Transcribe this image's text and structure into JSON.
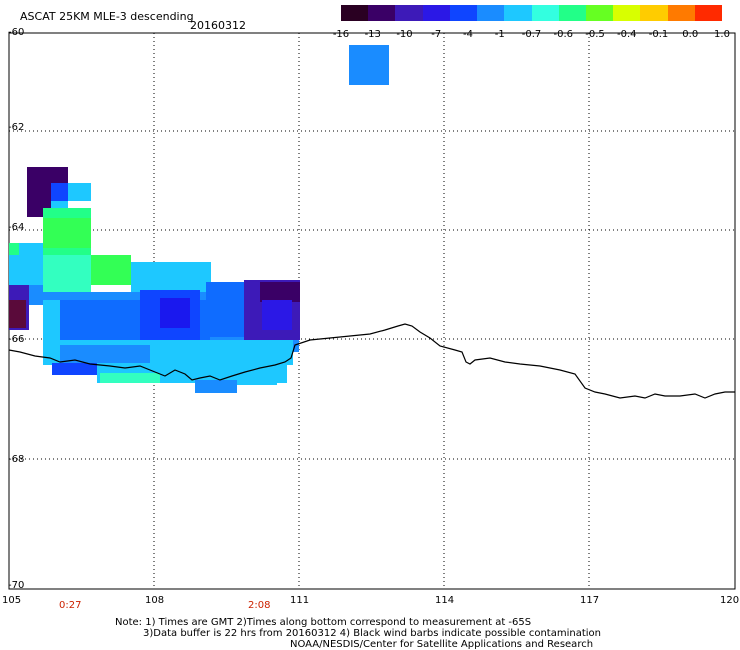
{
  "header": {
    "title": "ASCAT 25KM MLE-3 descending",
    "date": "20160312"
  },
  "colorbar": {
    "colors": [
      "#2a0022",
      "#3a0066",
      "#3d1ab8",
      "#2b18e6",
      "#0f45ff",
      "#1a8cff",
      "#1ec8ff",
      "#33ffe0",
      "#22ff88",
      "#66ff22",
      "#d8ff00",
      "#ffcc00",
      "#ff7a00",
      "#ff2a00"
    ],
    "labels": [
      "-16",
      "-13",
      "-10",
      "-7",
      "-4",
      "-1",
      "-0.7",
      "-0.6",
      "-0.5",
      "-0.4",
      "-0.1",
      "0.0",
      "1.0"
    ]
  },
  "axes": {
    "lat_labels": [
      "-60",
      "-62",
      "-64",
      "-66",
      "-68",
      "-70"
    ],
    "lon_labels": [
      "105",
      "108",
      "111",
      "114",
      "117",
      "120"
    ]
  },
  "times": {
    "left": "0:27",
    "right": "2:08"
  },
  "notes": {
    "line1": "Note: 1) Times are GMT 2)Times along bottom correspond to measurement at -65S",
    "line2": "3)Data buffer is 22 hrs from 20160312 4) Black wind barbs indicate possible contamination",
    "line3": "NOAA/NESDIS/Center for Satellite Applications and Research"
  }
}
